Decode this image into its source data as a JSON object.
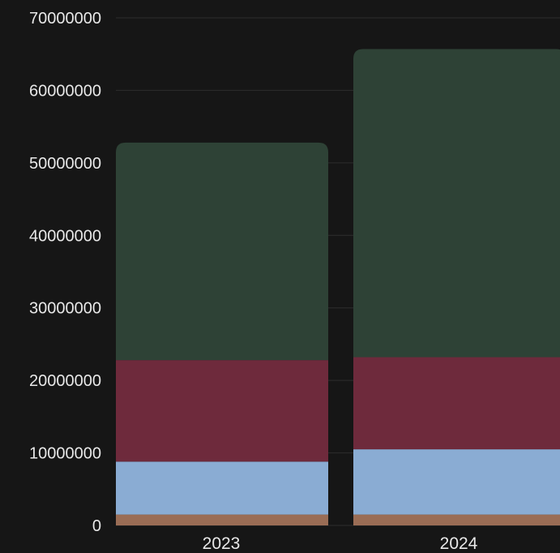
{
  "chart_data": {
    "type": "bar",
    "stacked": true,
    "categories": [
      "2023",
      "2024"
    ],
    "series": [
      {
        "color": "#9a6d55",
        "values": [
          1500000,
          1500000
        ]
      },
      {
        "color": "#8aacd3",
        "values": [
          7300000,
          9000000
        ]
      },
      {
        "color": "#6e2a3c",
        "values": [
          14000000,
          12700000
        ]
      },
      {
        "color": "#2e4236",
        "values": [
          30000000,
          42500000
        ]
      }
    ],
    "ylim": [
      0,
      70000000
    ],
    "yticks": [
      "0",
      "10000000",
      "20000000",
      "30000000",
      "40000000",
      "50000000",
      "60000000",
      "70000000"
    ],
    "grid": true,
    "title": "",
    "xlabel": "",
    "ylabel": "",
    "colors": {
      "background": "#161616",
      "grid": "#2e2e2e",
      "text": "#e8e8e8"
    }
  }
}
